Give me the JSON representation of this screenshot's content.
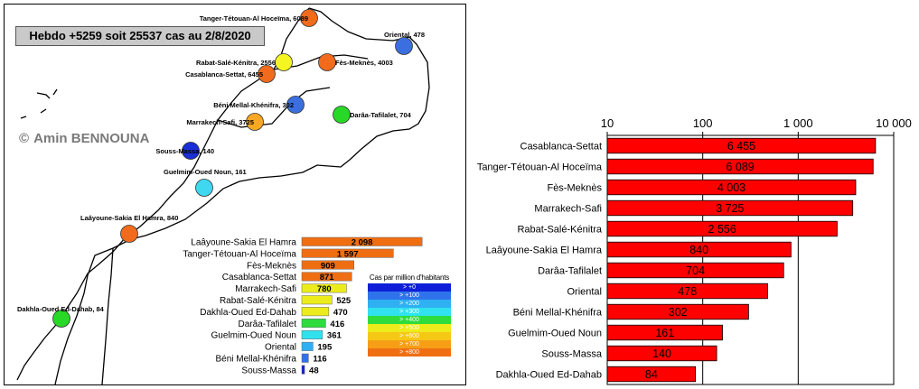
{
  "map": {
    "title": "Hebdo +5259 soit 25537 cas au 2/8/2020",
    "copyright_symbol": "©",
    "copyright_name": "Amin BENNOUNA",
    "markers": [
      {
        "label": "Tanger-Tétouan-Al Hoceïma, 6089",
        "color": "#f26b1d"
      },
      {
        "label": "Oriental, 478",
        "color": "#3b6fe0"
      },
      {
        "label": "Rabat-Salé-Kénitra, 2556",
        "color": "#f5f521"
      },
      {
        "label": "Fès-Meknès, 4003",
        "color": "#f26b1d"
      },
      {
        "label": "Casablanca-Settat, 6455",
        "color": "#f26b1d"
      },
      {
        "label": "Béni Mellal-Khénifra, 302",
        "color": "#3b6fe0"
      },
      {
        "label": "Darâa-Tafilalet, 704",
        "color": "#27d827"
      },
      {
        "label": "Marrakech-Safi, 3725",
        "color": "#f9a825"
      },
      {
        "label": "Souss-Massa, 140",
        "color": "#1a2fd6"
      },
      {
        "label": "Guelmim-Oued Noun, 161",
        "color": "#3fd8f0"
      },
      {
        "label": "Laâyoune-Sakia El Hamra, 840",
        "color": "#f26b1d"
      },
      {
        "label": "Dakhla-Oued Ed-Dahab, 84",
        "color": "#27d827"
      }
    ]
  },
  "legend": {
    "title": "Cas par million d'habitants",
    "items": [
      {
        "label": "> +0",
        "color": "#0f1fd8"
      },
      {
        "label": "> +100",
        "color": "#2f73ec"
      },
      {
        "label": "> +200",
        "color": "#2fb0f2"
      },
      {
        "label": "> +300",
        "color": "#2fe2ee"
      },
      {
        "label": "> +400",
        "color": "#2fdc3e"
      },
      {
        "label": "> +500",
        "color": "#ecec1c"
      },
      {
        "label": "> +600",
        "color": "#f6c816"
      },
      {
        "label": "> +700",
        "color": "#f69e16"
      },
      {
        "label": "> +800",
        "color": "#f06e12"
      }
    ]
  },
  "chart_data": [
    {
      "type": "bar",
      "orientation": "horizontal",
      "description_scale": "linear",
      "categories": [
        "Laâyoune-Sakia El Hamra",
        "Tanger-Tétouan-Al Hoceïma",
        "Fès-Meknès",
        "Casablanca-Settat",
        "Marrakech-Safi",
        "Rabat-Salé-Kénitra",
        "Dakhla-Oued Ed-Dahab",
        "Darâa-Tafilalet",
        "Guelmim-Oued Noun",
        "Oriental",
        "Béni Mellal-Khénifra",
        "Souss-Massa"
      ],
      "values": [
        2098,
        1597,
        909,
        871,
        780,
        525,
        470,
        416,
        361,
        195,
        116,
        48
      ],
      "value_labels": [
        "2 098",
        "1 597",
        "909",
        "871",
        "780",
        "525",
        "470",
        "416",
        "361",
        "195",
        "116",
        "48"
      ],
      "bar_colors": [
        "#f06e12",
        "#f06e12",
        "#f06e12",
        "#f06e12",
        "#ecec1c",
        "#ecec1c",
        "#ecec1c",
        "#2fdc3e",
        "#2fe2ee",
        "#2fb0f2",
        "#2f73ec",
        "#0f1fd8"
      ],
      "xlim": [
        0,
        2300
      ]
    },
    {
      "type": "bar",
      "orientation": "horizontal",
      "xscale": "log",
      "xlim": [
        10,
        10000
      ],
      "xticks": [
        10,
        100,
        1000,
        10000
      ],
      "xtick_labels": [
        "10",
        "100",
        "1 000",
        "10 000"
      ],
      "categories": [
        "Casablanca-Settat",
        "Tanger-Tétouan-Al Hoceïma",
        "Fès-Meknès",
        "Marrakech-Safi",
        "Rabat-Salé-Kénitra",
        "Laâyoune-Sakia El Hamra",
        "Darâa-Tafilalet",
        "Oriental",
        "Béni Mellal-Khénifra",
        "Guelmim-Oued Noun",
        "Souss-Massa",
        "Dakhla-Oued Ed-Dahab"
      ],
      "values": [
        6455,
        6089,
        4003,
        3725,
        2556,
        840,
        704,
        478,
        302,
        161,
        140,
        84
      ],
      "value_labels": [
        "6 455",
        "6 089",
        "4 003",
        "3 725",
        "2 556",
        "840",
        "704",
        "478",
        "302",
        "161",
        "140",
        "84"
      ],
      "bar_color": "#ff0000",
      "grid": "vertical"
    }
  ]
}
